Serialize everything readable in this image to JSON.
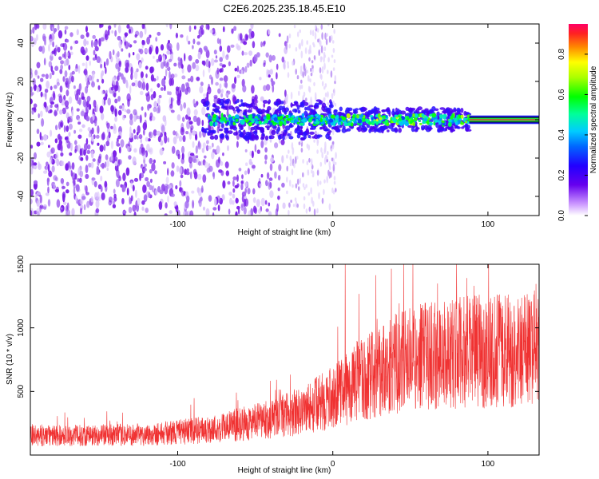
{
  "title": "C2E6.2025.235.18.45.E10",
  "chart_data": [
    {
      "type": "heatmap",
      "xlabel": "Height of straight line (km)",
      "ylabel": "Frequency (Hz)",
      "xlim": [
        -195,
        133
      ],
      "ylim": [
        -50,
        50
      ],
      "xticks": [
        -100,
        0,
        100
      ],
      "yticks": [
        -40,
        -20,
        0,
        20,
        40
      ],
      "colorbar": {
        "label": "Normalized spectral amplitude",
        "range": [
          0,
          0.95
        ],
        "ticks": [
          "0.0",
          "0.2",
          "0.4",
          "0.6",
          "0.8"
        ]
      },
      "regions": [
        {
          "name": "broadband noise",
          "x_range": [
            -195,
            -30
          ],
          "f_range": [
            -50,
            50
          ],
          "amplitude": 0.1
        },
        {
          "name": "sparse noise",
          "x_range": [
            -30,
            0
          ],
          "f_range": [
            -50,
            50
          ],
          "amplitude": 0.05
        },
        {
          "name": "signal band",
          "x_range": [
            -85,
            88
          ],
          "f_range": [
            -5,
            5
          ],
          "amplitude": 0.3
        },
        {
          "name": "steady tone",
          "x_range": [
            88,
            133
          ],
          "f_range": [
            -1,
            1
          ],
          "amplitude": 0.9
        }
      ]
    },
    {
      "type": "line",
      "xlabel": "Height of straight line (km)",
      "ylabel": "SNR (10 * v/v)",
      "xlim": [
        -195,
        133
      ],
      "ylim": [
        0,
        1500
      ],
      "xticks": [
        -100,
        0,
        100
      ],
      "yticks": [
        500,
        1000,
        1500
      ],
      "color": "#f03232",
      "trend": [
        {
          "x": -195,
          "y": 150
        },
        {
          "x": -120,
          "y": 160
        },
        {
          "x": -80,
          "y": 200
        },
        {
          "x": -40,
          "y": 280
        },
        {
          "x": -20,
          "y": 350
        },
        {
          "x": 0,
          "y": 450
        },
        {
          "x": 20,
          "y": 600
        },
        {
          "x": 40,
          "y": 720
        },
        {
          "x": 60,
          "y": 780
        },
        {
          "x": 80,
          "y": 800
        },
        {
          "x": 100,
          "y": 820
        },
        {
          "x": 133,
          "y": 830
        }
      ],
      "peak": {
        "x": 8,
        "y": 1500
      }
    }
  ]
}
